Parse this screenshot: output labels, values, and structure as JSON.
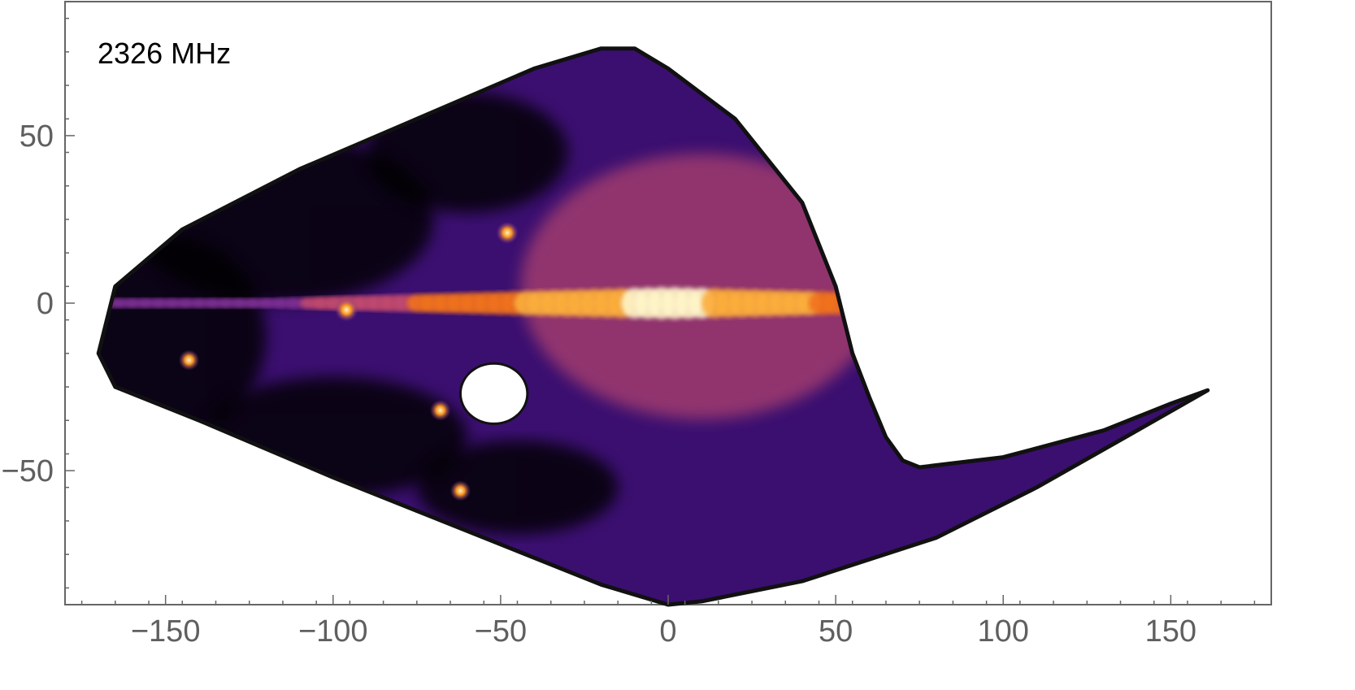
{
  "chart_data": {
    "type": "heatmap",
    "annotation": "2326 MHz",
    "x_ticks": [
      {
        "value": -150,
        "label": "−150"
      },
      {
        "value": -100,
        "label": "−100"
      },
      {
        "value": -50,
        "label": "−50"
      },
      {
        "value": 0,
        "label": "0"
      },
      {
        "value": 50,
        "label": "50"
      },
      {
        "value": 100,
        "label": "100"
      },
      {
        "value": 150,
        "label": "150"
      }
    ],
    "y_ticks": [
      {
        "value": -50,
        "label": "−50"
      },
      {
        "value": 0,
        "label": "0"
      },
      {
        "value": 50,
        "label": "50"
      }
    ],
    "xlim": [
      -180,
      180
    ],
    "ylim": [
      -90,
      90
    ],
    "grid": false,
    "colormap": [
      "#000000",
      "#3b0f70",
      "#7a2f91",
      "#c0486e",
      "#f1721e",
      "#fcae3a",
      "#fff6c8"
    ],
    "coverage_outline": [
      [
        -165,
        -25
      ],
      [
        -170,
        -15
      ],
      [
        -165,
        5
      ],
      [
        -145,
        22
      ],
      [
        -110,
        40
      ],
      [
        -75,
        55
      ],
      [
        -40,
        70
      ],
      [
        -20,
        76
      ],
      [
        -10,
        76
      ],
      [
        0,
        70
      ],
      [
        20,
        55
      ],
      [
        40,
        30
      ],
      [
        50,
        5
      ],
      [
        55,
        -15
      ],
      [
        60,
        -28
      ],
      [
        65,
        -40
      ],
      [
        70,
        -47
      ],
      [
        75,
        -49
      ],
      [
        100,
        -46
      ],
      [
        130,
        -38
      ],
      [
        150,
        -30
      ],
      [
        161,
        -26
      ],
      [
        140,
        -38
      ],
      [
        110,
        -55
      ],
      [
        80,
        -70
      ],
      [
        40,
        -83
      ],
      [
        10,
        -89
      ],
      [
        0,
        -90
      ],
      [
        -20,
        -84
      ],
      [
        -60,
        -68
      ],
      [
        -100,
        -52
      ],
      [
        -140,
        -35
      ]
    ],
    "holes": [
      {
        "center": [
          -52,
          -27
        ],
        "radius_x": 10,
        "radius_y": 9
      }
    ],
    "features": [
      {
        "name": "galactic plane",
        "lon_range": [
          -170,
          50
        ],
        "lat": 0,
        "peak_lon": 0,
        "peak_intensity": 0.98
      },
      {
        "name": "bright source",
        "lon": -48,
        "lat": 21,
        "intensity": 0.72
      },
      {
        "name": "bright source",
        "lon": -96,
        "lat": -2,
        "intensity": 0.8
      },
      {
        "name": "bright source",
        "lon": -68,
        "lat": -32,
        "intensity": 0.62
      },
      {
        "name": "bright source",
        "lon": -143,
        "lat": -17,
        "intensity": 0.6
      },
      {
        "name": "bright source",
        "lon": -62,
        "lat": -56,
        "intensity": 0.6
      }
    ]
  }
}
